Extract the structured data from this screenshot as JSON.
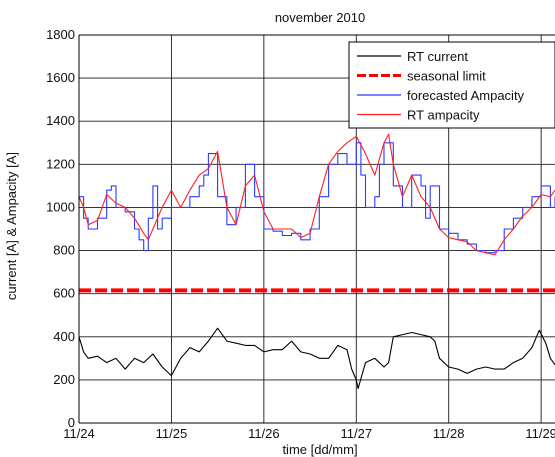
{
  "chart_data": {
    "type": "line",
    "title": "november 2010",
    "xlabel": "time [dd/mm]",
    "ylabel": "current [A] & Ampacity [A]",
    "xlim": [
      24.0,
      29.15
    ],
    "ylim": [
      0,
      1800
    ],
    "x_ticks": [
      24,
      25,
      26,
      27,
      28,
      29
    ],
    "x_tick_labels": [
      "11/24",
      "11/25",
      "11/26",
      "11/27",
      "11/28",
      "11/29"
    ],
    "y_ticks": [
      0,
      200,
      400,
      600,
      800,
      1000,
      1200,
      1400,
      1600,
      1800
    ],
    "y_tick_labels": [
      "0",
      "200",
      "400",
      "600",
      "800",
      "1000",
      "1200",
      "1400",
      "1600",
      "1800"
    ],
    "grid": true,
    "legend_position": "top-right",
    "series": [
      {
        "name": "RT current",
        "color": "#000000",
        "style": "solid",
        "x": [
          24.0,
          24.05,
          24.1,
          24.2,
          24.3,
          24.4,
          24.5,
          24.6,
          24.7,
          24.8,
          24.9,
          25.0,
          25.1,
          25.2,
          25.3,
          25.4,
          25.5,
          25.6,
          25.7,
          25.8,
          25.9,
          26.0,
          26.1,
          26.2,
          26.3,
          26.4,
          26.5,
          26.6,
          26.7,
          26.8,
          26.9,
          26.95,
          27.0,
          27.02,
          27.1,
          27.2,
          27.3,
          27.35,
          27.4,
          27.5,
          27.6,
          27.7,
          27.8,
          27.85,
          27.9,
          28.0,
          28.1,
          28.2,
          28.3,
          28.4,
          28.5,
          28.6,
          28.7,
          28.8,
          28.9,
          28.98,
          29.05,
          29.1,
          29.15
        ],
        "y": [
          400,
          330,
          300,
          310,
          280,
          300,
          250,
          300,
          280,
          320,
          260,
          220,
          300,
          350,
          330,
          380,
          440,
          380,
          370,
          360,
          360,
          330,
          340,
          340,
          380,
          330,
          320,
          300,
          300,
          360,
          340,
          250,
          200,
          160,
          280,
          300,
          260,
          280,
          400,
          410,
          420,
          410,
          400,
          380,
          300,
          260,
          250,
          230,
          250,
          260,
          250,
          250,
          280,
          300,
          350,
          430,
          370,
          300,
          270
        ]
      },
      {
        "name": "seasonal limit",
        "color": "#ff0000",
        "style": "dashed",
        "x": [
          24.0,
          29.15
        ],
        "y": [
          615,
          615
        ]
      },
      {
        "name": "forecasted Ampacity",
        "color": "#2b3cff",
        "style": "step",
        "x": [
          24.0,
          24.05,
          24.1,
          24.2,
          24.3,
          24.35,
          24.4,
          24.5,
          24.6,
          24.65,
          24.7,
          24.75,
          24.8,
          24.85,
          24.9,
          25.0,
          25.1,
          25.2,
          25.3,
          25.35,
          25.4,
          25.5,
          25.6,
          25.7,
          25.8,
          25.9,
          26.0,
          26.1,
          26.2,
          26.3,
          26.4,
          26.5,
          26.6,
          26.7,
          26.8,
          26.9,
          27.0,
          27.05,
          27.1,
          27.2,
          27.25,
          27.3,
          27.4,
          27.5,
          27.6,
          27.7,
          27.75,
          27.8,
          27.9,
          28.0,
          28.1,
          28.2,
          28.3,
          28.4,
          28.5,
          28.6,
          28.7,
          28.8,
          28.9,
          29.0,
          29.1,
          29.15
        ],
        "y": [
          1050,
          950,
          900,
          950,
          1080,
          1100,
          1000,
          980,
          900,
          850,
          800,
          950,
          1100,
          900,
          950,
          1000,
          1000,
          1050,
          1100,
          1150,
          1250,
          1050,
          920,
          1000,
          1200,
          1050,
          900,
          890,
          870,
          880,
          850,
          900,
          1050,
          1200,
          1250,
          1200,
          1300,
          1150,
          1000,
          1050,
          1200,
          1300,
          1100,
          1000,
          1150,
          1100,
          950,
          1100,
          900,
          880,
          850,
          830,
          800,
          790,
          800,
          900,
          950,
          1000,
          1050,
          1100,
          1000,
          1050
        ]
      },
      {
        "name": "RT ampacity",
        "color": "#ff2020",
        "style": "solid",
        "x": [
          24.0,
          24.05,
          24.1,
          24.2,
          24.3,
          24.4,
          24.5,
          24.6,
          24.7,
          24.75,
          24.8,
          24.9,
          25.0,
          25.1,
          25.2,
          25.3,
          25.4,
          25.5,
          25.6,
          25.7,
          25.8,
          25.9,
          26.0,
          26.1,
          26.2,
          26.3,
          26.4,
          26.5,
          26.6,
          26.7,
          26.8,
          26.9,
          27.0,
          27.1,
          27.2,
          27.3,
          27.35,
          27.4,
          27.5,
          27.6,
          27.7,
          27.8,
          27.9,
          28.0,
          28.1,
          28.2,
          28.3,
          28.4,
          28.5,
          28.6,
          28.7,
          28.8,
          28.9,
          29.0,
          29.1,
          29.15
        ],
        "y": [
          1050,
          1000,
          920,
          940,
          1060,
          1020,
          1000,
          950,
          880,
          850,
          900,
          1000,
          1080,
          1000,
          1080,
          1150,
          1180,
          1260,
          1000,
          920,
          1100,
          1150,
          980,
          900,
          900,
          900,
          860,
          880,
          1050,
          1200,
          1260,
          1300,
          1330,
          1250,
          1150,
          1300,
          1340,
          1200,
          1050,
          1150,
          1050,
          1000,
          900,
          860,
          850,
          840,
          800,
          790,
          780,
          850,
          900,
          960,
          1000,
          1060,
          1050,
          1080
        ]
      }
    ]
  }
}
